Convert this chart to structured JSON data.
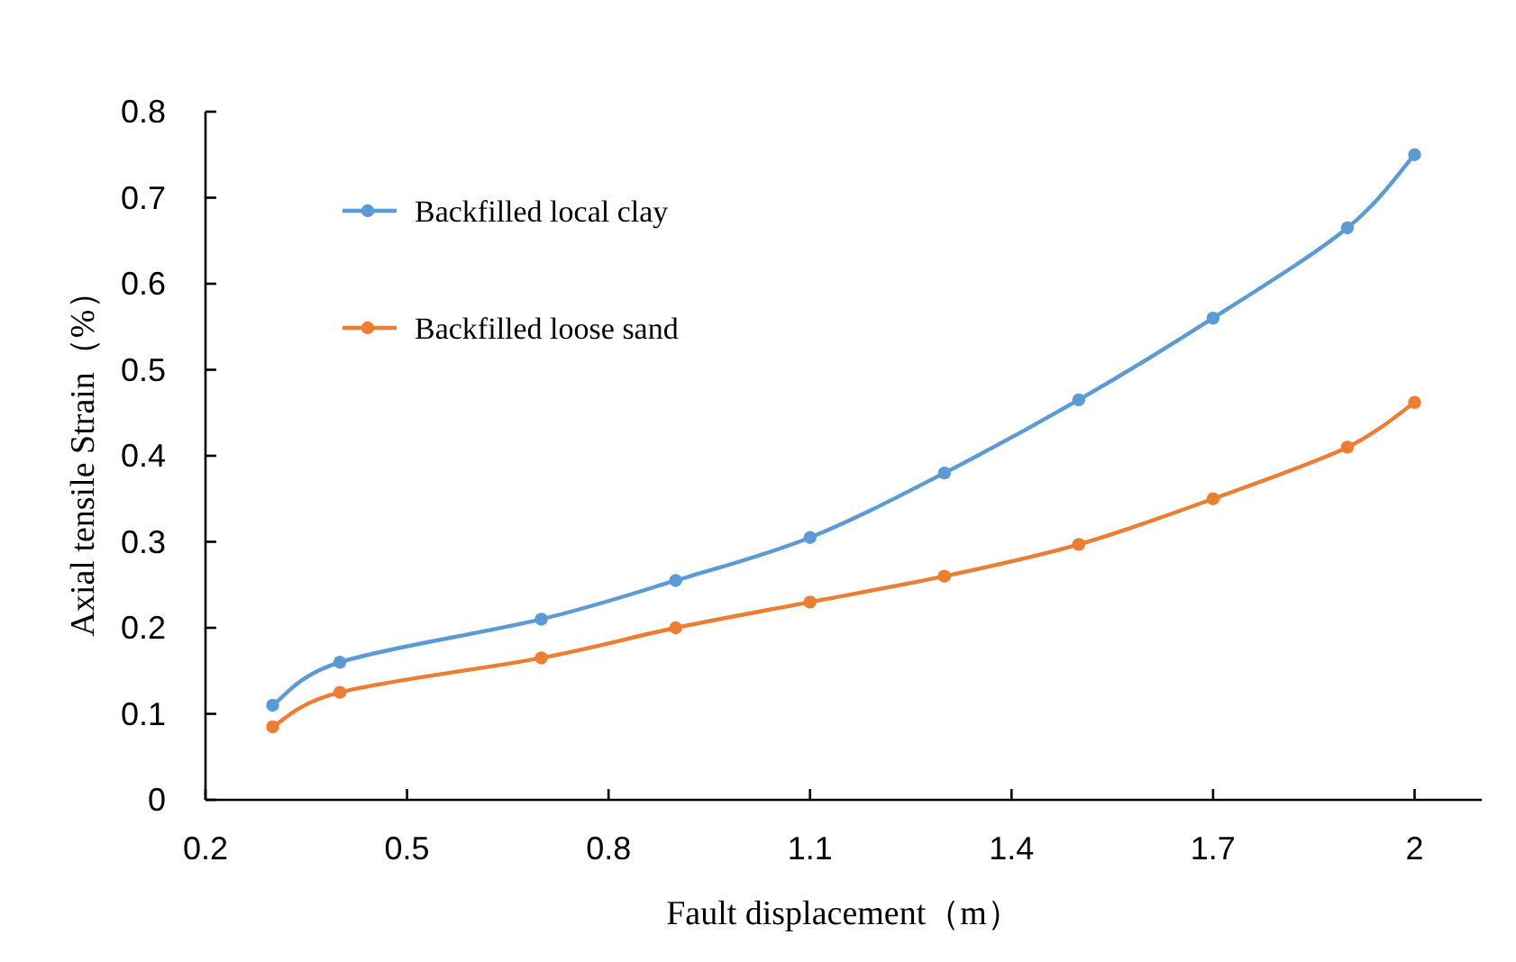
{
  "chart_data": {
    "type": "line",
    "xlabel": "Fault displacement（m）",
    "ylabel": "Axial tensile Strain（%）",
    "x": [
      0.3,
      0.4,
      0.7,
      0.9,
      1.1,
      1.3,
      1.5,
      1.7,
      1.9,
      2.0
    ],
    "series": [
      {
        "name": "Backfilled local clay",
        "color": "#5b9bd5",
        "values": [
          0.11,
          0.16,
          0.21,
          0.255,
          0.305,
          0.38,
          0.465,
          0.56,
          0.665,
          0.75
        ]
      },
      {
        "name": "Backfilled loose sand",
        "color": "#ed7d31",
        "values": [
          0.085,
          0.125,
          0.165,
          0.2,
          0.23,
          0.26,
          0.297,
          0.35,
          0.41,
          0.462
        ]
      }
    ],
    "xlim": [
      0.2,
      2.1
    ],
    "xticks": [
      0.2,
      0.5,
      0.8,
      1.1,
      1.4,
      1.7,
      2
    ],
    "ylim": [
      0,
      0.8
    ],
    "yticks": [
      0,
      0.1,
      0.2,
      0.3,
      0.4,
      0.5,
      0.6,
      0.7,
      0.8
    ],
    "grid": false,
    "legend": "top left",
    "marker": "circle",
    "line_style": "solid"
  }
}
